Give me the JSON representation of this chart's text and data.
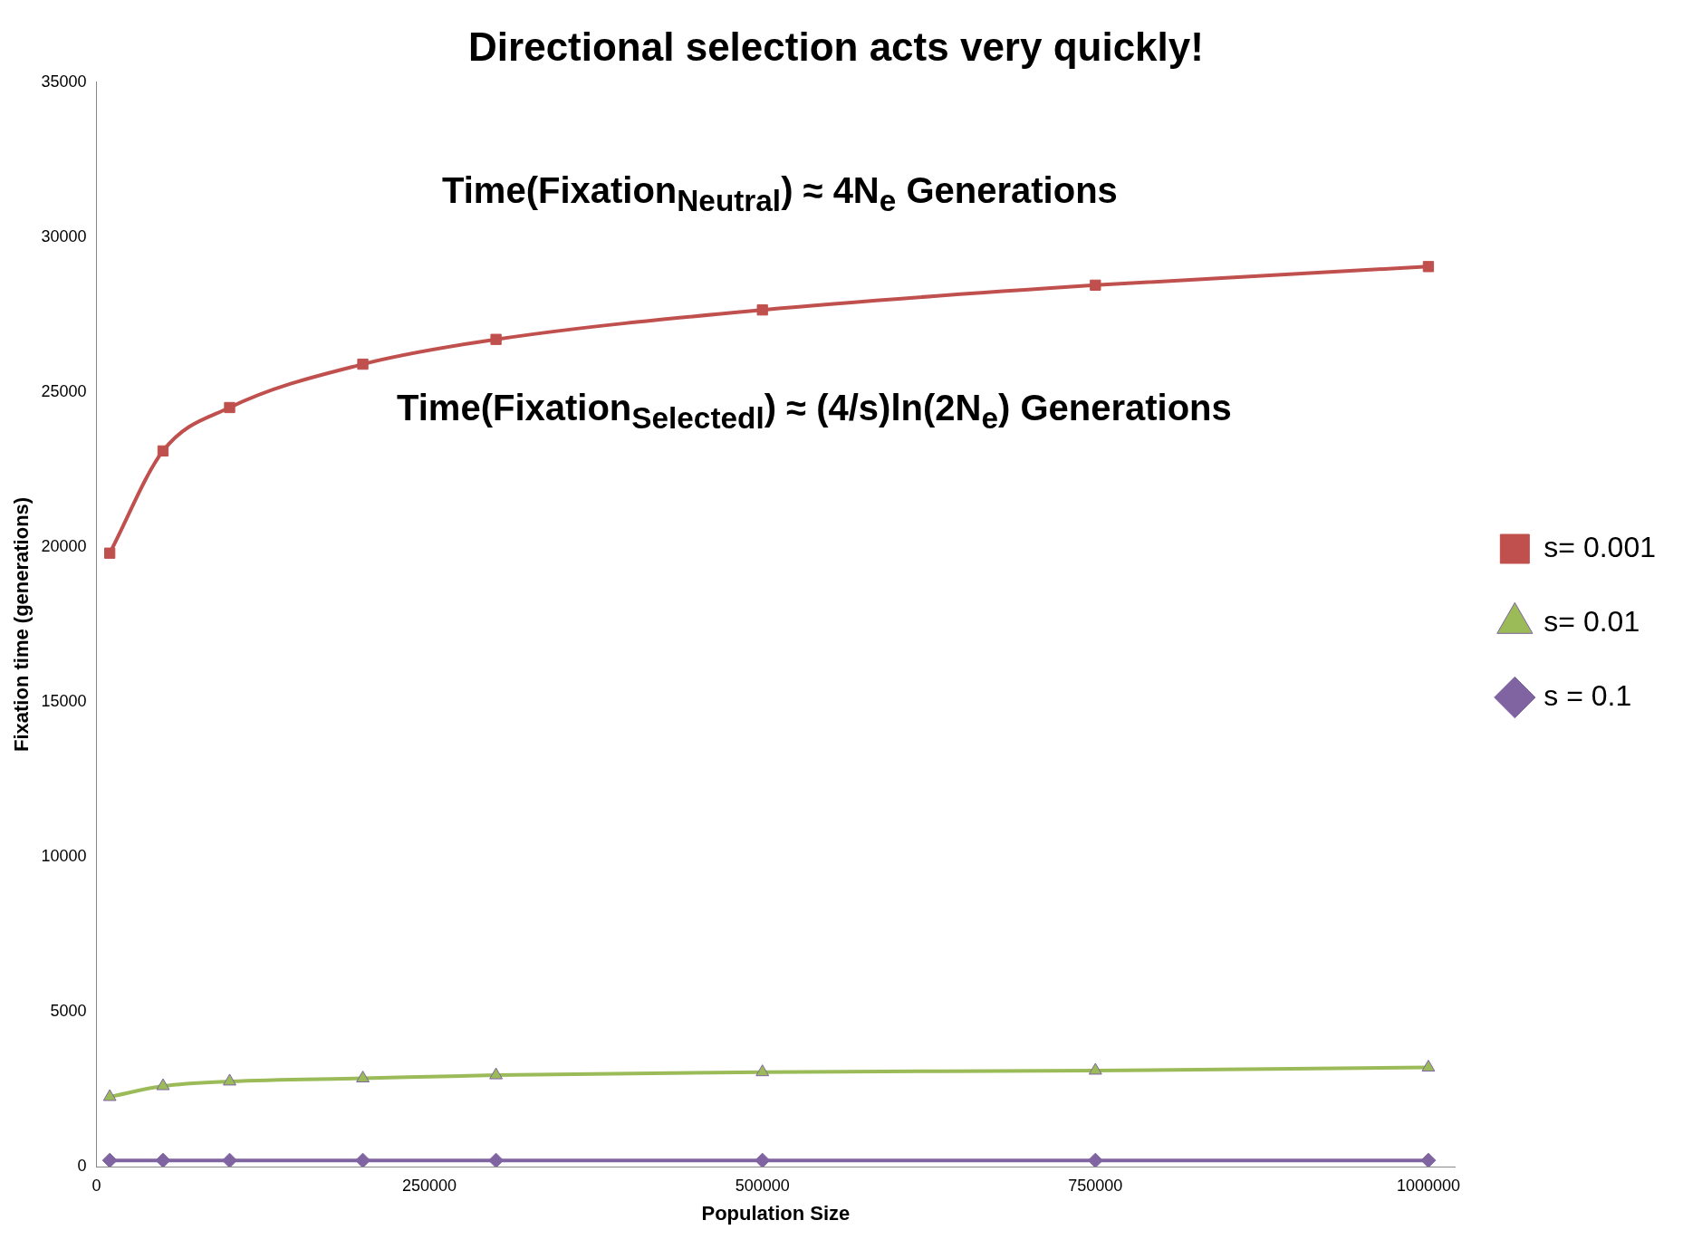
{
  "chart_data": {
    "type": "line",
    "title": "Directional selection acts very quickly!",
    "xlabel": "Population Size",
    "ylabel": "Fixation time (generations)",
    "x": [
      10000,
      50000,
      100000,
      200000,
      300000,
      500000,
      750000,
      1000000
    ],
    "series": [
      {
        "name": "s= 0.001",
        "color": "#c0504d",
        "marker": "square",
        "values": [
          19800,
          23100,
          24500,
          25900,
          26700,
          27650,
          28450,
          29050
        ]
      },
      {
        "name": "s= 0.01",
        "color": "#9bbb59",
        "marker": "triangle",
        "values": [
          2250,
          2600,
          2750,
          2850,
          2950,
          3050,
          3100,
          3200
        ]
      },
      {
        "name": "s = 0.1",
        "color": "#8064a2",
        "marker": "diamond",
        "values": [
          200,
          200,
          200,
          200,
          200,
          200,
          200,
          200
        ]
      }
    ],
    "xlim": [
      0,
      1020000
    ],
    "xticks": [
      0,
      250000,
      500000,
      750000,
      1000000
    ],
    "ylim": [
      0,
      35000
    ],
    "yticks": [
      0,
      5000,
      10000,
      15000,
      20000,
      25000,
      30000,
      35000
    ],
    "grid": false,
    "legend": "right",
    "line_style": "solid",
    "annotations": [
      "Time(Fixation$_{Neutral}$) ≈ 4N$_{e}$ Generations",
      "Time(Fixation$_{Selectedl}$) ≈ (4/s)ln(2N$_{e}$) Generations"
    ]
  }
}
